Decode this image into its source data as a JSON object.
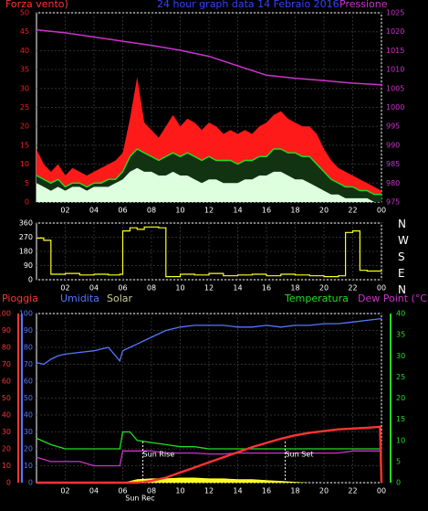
{
  "colors": {
    "background": "#000000",
    "grid": "#2e2e2e",
    "axis": "#ffffff",
    "wind_gust": "#ff1a1a",
    "wind_avg": "#22dd22",
    "wind_base": "#ddffdd",
    "pressure": "#cc33cc",
    "direction": "#ffff22",
    "rain": "#ff3333",
    "humidity": "#5577ff",
    "solar": "#ffff22",
    "temperature": "#22dd22",
    "dew_point": "#cc33cc",
    "marker": "#ffffff"
  },
  "header": {
    "wind_label": "Forza vento)",
    "title": "24 hour graph data 14 Febraio 2016",
    "pressure_label": "Pressione"
  },
  "compass": [
    "N",
    "W",
    "S",
    "E",
    "N"
  ],
  "lower_labels": {
    "rain": "Pioggia",
    "humidity": "Umidita",
    "solar": "Solar",
    "temperature": "Temperatura",
    "dew_point": "Dew Point (°C)"
  },
  "chart_data": [
    {
      "type": "line",
      "x_ticks": [
        "02",
        "04",
        "06",
        "08",
        "10",
        "12",
        "14",
        "16",
        "18",
        "20",
        "22",
        "00"
      ],
      "y_left_ticks": [
        0,
        5,
        10,
        15,
        20,
        25,
        30,
        35,
        40,
        45,
        50
      ],
      "ylim_left": [
        0,
        50
      ],
      "y_right_ticks": [
        975,
        980,
        985,
        990,
        995,
        1000,
        1005,
        1010,
        1015,
        1020,
        1025
      ],
      "ylim_right": [
        975,
        1025
      ],
      "series": [
        {
          "role": "wind_gust",
          "x": [
            0,
            0.5,
            1,
            1.5,
            2,
            2.5,
            3,
            3.5,
            4,
            4.5,
            5,
            5.5,
            6,
            6.5,
            7,
            7.5,
            8,
            8.5,
            9,
            9.5,
            10,
            10.5,
            11,
            11.5,
            12,
            12.5,
            13,
            13.5,
            14,
            14.5,
            15,
            15.5,
            16,
            16.5,
            17,
            17.5,
            18,
            18.5,
            19,
            19.5,
            20,
            20.5,
            21,
            21.5,
            22,
            22.5,
            23,
            23.5,
            24
          ],
          "values": [
            14,
            10,
            8,
            10,
            7,
            9,
            8,
            7,
            8,
            9,
            10,
            11,
            13,
            22,
            33,
            21,
            19,
            17,
            20,
            23,
            20,
            22,
            21,
            19,
            21,
            20,
            18,
            19,
            18,
            19,
            18,
            20,
            21,
            23,
            24,
            22,
            21,
            20,
            20,
            18,
            14,
            11,
            9,
            8,
            7,
            6,
            5,
            4,
            3
          ]
        },
        {
          "role": "wind_avg",
          "x": [
            0,
            0.5,
            1,
            1.5,
            2,
            2.5,
            3,
            3.5,
            4,
            4.5,
            5,
            5.5,
            6,
            6.5,
            7,
            7.5,
            8,
            8.5,
            9,
            9.5,
            10,
            10.5,
            11,
            11.5,
            12,
            12.5,
            13,
            13.5,
            14,
            14.5,
            15,
            15.5,
            16,
            16.5,
            17,
            17.5,
            18,
            18.5,
            19,
            19.5,
            20,
            20.5,
            21,
            21.5,
            22,
            22.5,
            23,
            23.5,
            24
          ],
          "values": [
            7,
            6,
            5,
            6,
            4,
            5,
            5,
            4,
            5,
            5,
            6,
            6,
            8,
            12,
            14,
            13,
            12,
            11,
            12,
            13,
            12,
            13,
            12,
            11,
            12,
            11,
            11,
            11,
            10,
            11,
            11,
            12,
            12,
            14,
            14,
            13,
            13,
            12,
            12,
            10,
            8,
            6,
            5,
            4,
            4,
            3,
            3,
            2,
            2
          ]
        },
        {
          "role": "wind_base",
          "x": [
            0,
            0.5,
            1,
            1.5,
            2,
            2.5,
            3,
            3.5,
            4,
            4.5,
            5,
            5.5,
            6,
            6.5,
            7,
            7.5,
            8,
            8.5,
            9,
            9.5,
            10,
            10.5,
            11,
            11.5,
            12,
            12.5,
            13,
            13.5,
            14,
            14.5,
            15,
            15.5,
            16,
            16.5,
            17,
            17.5,
            18,
            18.5,
            19,
            19.5,
            20,
            20.5,
            21,
            21.5,
            22,
            22.5,
            23,
            23.5,
            24
          ],
          "values": [
            5,
            4,
            3,
            4,
            3,
            4,
            4,
            3,
            4,
            4,
            4,
            5,
            6,
            8,
            9,
            8,
            8,
            7,
            7,
            8,
            7,
            7,
            6,
            5,
            6,
            6,
            5,
            5,
            5,
            6,
            6,
            7,
            7,
            8,
            8,
            7,
            6,
            6,
            5,
            4,
            3,
            2,
            2,
            1,
            1,
            1,
            1,
            0,
            0
          ]
        },
        {
          "role": "pressure",
          "axis": "right",
          "x": [
            0,
            2,
            4,
            6,
            8,
            10,
            12,
            14,
            16,
            18,
            20,
            22,
            24
          ],
          "values": [
            1020.5,
            1019.7,
            1018.6,
            1017.5,
            1016.4,
            1015.1,
            1013.5,
            1011.0,
            1008.5,
            1007.7,
            1007.1,
            1006.4,
            1006.0
          ]
        }
      ]
    },
    {
      "type": "line",
      "x_ticks": [
        "02",
        "04",
        "06",
        "08",
        "10",
        "12",
        "14",
        "16",
        "18",
        "20",
        "22",
        "00"
      ],
      "y_ticks": [
        0,
        90,
        180,
        270,
        360
      ],
      "ylim": [
        0,
        360
      ],
      "series": [
        {
          "role": "direction",
          "x": [
            0,
            0.5,
            1,
            2,
            3,
            4,
            5,
            5.8,
            6,
            6.5,
            7,
            7.5,
            8.5,
            9,
            10,
            11,
            12,
            13,
            14,
            15,
            16,
            17,
            18,
            19,
            20,
            21,
            21.5,
            22,
            22.5,
            23,
            24
          ],
          "values": [
            265,
            250,
            35,
            40,
            30,
            35,
            30,
            35,
            310,
            330,
            320,
            335,
            330,
            20,
            35,
            30,
            40,
            25,
            30,
            35,
            25,
            35,
            30,
            25,
            20,
            25,
            300,
            310,
            60,
            55,
            60
          ]
        }
      ]
    },
    {
      "type": "line",
      "x_ticks": [
        "02",
        "04",
        "06",
        "08",
        "10",
        "12",
        "14",
        "16",
        "18",
        "20",
        "22",
        "00"
      ],
      "y_left_ticks": [
        0,
        10,
        20,
        30,
        40,
        50,
        60,
        70,
        80,
        90,
        100
      ],
      "ylim_left": [
        0,
        100
      ],
      "y_right_ticks": [
        0,
        5,
        10,
        15,
        20,
        25,
        30,
        35,
        40
      ],
      "ylim_right": [
        0,
        40
      ],
      "annotations": [
        {
          "text": "Sun Rise",
          "x": 7.4
        },
        {
          "text": "Sun Set",
          "x": 17.3
        },
        {
          "text": "Sun Rec",
          "x": 7.2
        }
      ],
      "series": [
        {
          "role": "humidity",
          "axis": "left",
          "x": [
            0,
            0.5,
            1,
            1.5,
            2,
            3,
            4,
            5,
            5.8,
            6,
            6.5,
            7,
            8,
            9,
            10,
            11,
            12,
            13,
            14,
            15,
            16,
            17,
            18,
            19,
            20,
            21,
            22,
            23,
            24
          ],
          "values": [
            71,
            70,
            73,
            75,
            76,
            77,
            78,
            80,
            72,
            78,
            80,
            82,
            86,
            90,
            92,
            93,
            93,
            93,
            92,
            92,
            93,
            92,
            93,
            93,
            94,
            94,
            95,
            96,
            97
          ]
        },
        {
          "role": "temperature",
          "axis": "right",
          "x": [
            0,
            1,
            2,
            3,
            4,
            5,
            5.8,
            6,
            6.5,
            7,
            8,
            9,
            10,
            11,
            12,
            13,
            14,
            15,
            16,
            17,
            18,
            19,
            20,
            21,
            22,
            23,
            24
          ],
          "values": [
            10.5,
            9,
            8,
            8,
            8,
            8,
            8,
            12,
            12,
            10,
            9.5,
            9,
            8.5,
            8.5,
            8,
            8,
            8,
            8,
            8,
            8,
            8,
            8,
            8,
            8,
            8,
            8,
            8
          ]
        },
        {
          "role": "dew_point",
          "axis": "right",
          "x": [
            0,
            1,
            2,
            3,
            4,
            5,
            5.8,
            6,
            7,
            8,
            9,
            10,
            11,
            12,
            13,
            14,
            15,
            16,
            17,
            18,
            19,
            20,
            21,
            22,
            23,
            24
          ],
          "values": [
            6,
            5,
            5,
            5,
            4,
            4,
            4,
            7.5,
            7.5,
            7.5,
            7,
            7,
            7,
            6.8,
            6.8,
            7,
            7,
            7,
            7,
            7,
            7,
            7,
            7,
            7.5,
            7.5,
            7.5
          ]
        },
        {
          "role": "rain",
          "axis": "left",
          "x": [
            0,
            2,
            4,
            6,
            7,
            8,
            9,
            10,
            11,
            12,
            13,
            14,
            15,
            16,
            17,
            18,
            19,
            20,
            21,
            22,
            23,
            23.9,
            24
          ],
          "values": [
            0,
            0,
            0,
            0,
            0,
            1,
            3,
            6,
            9,
            12,
            15,
            18,
            21,
            23.5,
            26,
            28,
            29.5,
            30.5,
            31.5,
            32,
            32.5,
            33,
            0
          ]
        },
        {
          "role": "solar",
          "axis": "left",
          "x": [
            0,
            2,
            4,
            6,
            6.5,
            7,
            8,
            9,
            10,
            11,
            12,
            13,
            14,
            15,
            16,
            17,
            18,
            19,
            24
          ],
          "values": [
            0,
            0,
            0,
            0,
            1,
            2,
            2.5,
            2.5,
            3,
            3,
            2.5,
            2.5,
            2,
            2,
            1.5,
            1,
            0.5,
            0,
            0
          ]
        }
      ]
    }
  ]
}
